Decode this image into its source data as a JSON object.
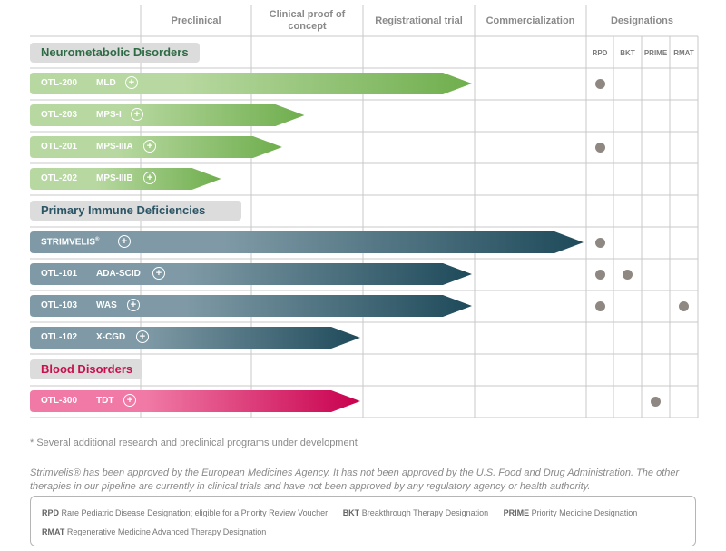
{
  "phases": [
    "Preclinical",
    "Clinical proof of\nconcept",
    "Registrational trial",
    "Commercialization"
  ],
  "designations_title": "Designations",
  "designations": [
    "RPD",
    "BKT",
    "PRIME",
    "RMAT"
  ],
  "categories": [
    {
      "label": "Neurometabolic Disorders",
      "color": "#2e6b45"
    },
    {
      "label": "Primary Immune Deficiencies",
      "color": "#2c5566"
    },
    {
      "label": "Blood Disorders",
      "color": "#c8104f"
    }
  ],
  "programs": [
    {
      "code": "OTL-200",
      "indication": "MLD",
      "category": 0,
      "phase_reached": 3.0,
      "designations": [
        "RPD"
      ]
    },
    {
      "code": "OTL-203",
      "indication": "MPS-I",
      "category": 0,
      "phase_reached": 1.5,
      "designations": []
    },
    {
      "code": "OTL-201",
      "indication": "MPS-IIIA",
      "category": 0,
      "phase_reached": 1.3,
      "designations": [
        "RPD"
      ]
    },
    {
      "code": "OTL-202",
      "indication": "MPS-IIIB",
      "category": 0,
      "phase_reached": 0.75,
      "designations": []
    },
    {
      "code": "STRIMVELIS",
      "indication": "",
      "category": 1,
      "registered": true,
      "phase_reached": 4.0,
      "designations": [
        "RPD"
      ]
    },
    {
      "code": "OTL-101",
      "indication": "ADA-SCID",
      "category": 1,
      "phase_reached": 3.0,
      "designations": [
        "RPD",
        "BKT"
      ]
    },
    {
      "code": "OTL-103",
      "indication": "WAS",
      "category": 1,
      "phase_reached": 3.0,
      "designations": [
        "RPD",
        "RMAT"
      ]
    },
    {
      "code": "OTL-102",
      "indication": "X-CGD",
      "category": 1,
      "phase_reached": 2.0,
      "designations": []
    },
    {
      "code": "OTL-300",
      "indication": "TDT",
      "category": 2,
      "phase_reached": 2.0,
      "designations": [
        "PRIME"
      ]
    }
  ],
  "colors": {
    "green_start": "#b7d8a0",
    "green_end": "#6fae4d",
    "teal_start": "#7f9aa6",
    "teal_end": "#1e4a5a",
    "pink_start": "#f07aa5",
    "pink_end": "#c8004e",
    "grid": "#c9c9c9",
    "dot": "#8f8882"
  },
  "footnote": "* Several additional research and preclinical programs under development",
  "disclaimer": "Strimvelis® has been approved by the European Medicines Agency. It has not been approved by the U.S. Food and Drug Administration. The other therapies in our pipeline are currently in clinical trials and have not been approved by any regulatory agency or health authority.",
  "legend": [
    {
      "abbr": "RPD",
      "text": "Rare Pediatric Disease Designation; eligible for a Priority Review Voucher"
    },
    {
      "abbr": "BKT",
      "text": "Breakthrough Therapy Designation"
    },
    {
      "abbr": "PRIME",
      "text": "Priority Medicine Designation"
    },
    {
      "abbr": "RMAT",
      "text": "Regenerative Medicine Advanced Therapy Designation"
    }
  ]
}
